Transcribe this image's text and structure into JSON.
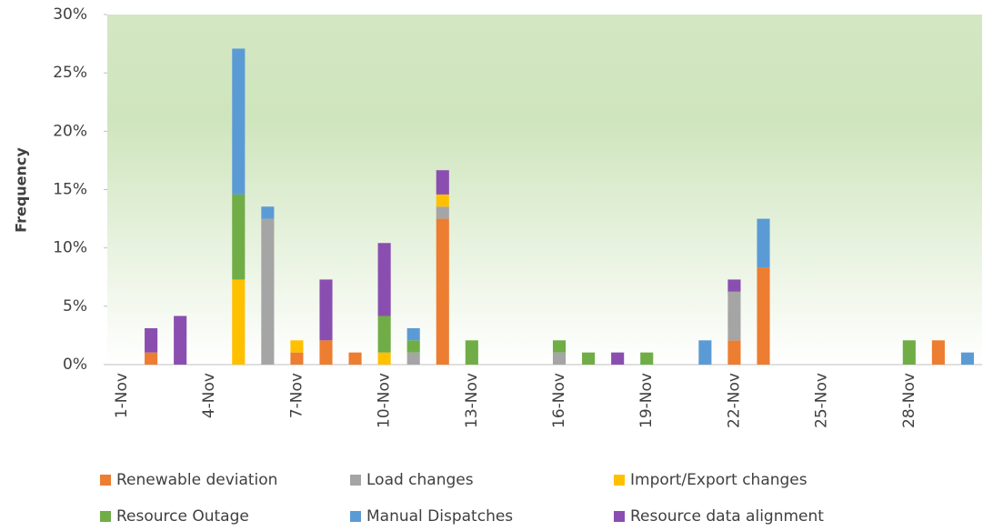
{
  "chart_data": {
    "type": "stacked-bar",
    "y_label": "Frequency",
    "categories": [
      "1-Nov",
      null,
      null,
      "4-Nov",
      null,
      null,
      "7-Nov",
      null,
      null,
      "10-Nov",
      null,
      null,
      "13-Nov",
      null,
      null,
      "16-Nov",
      null,
      null,
      "19-Nov",
      null,
      null,
      "22-Nov",
      null,
      null,
      "25-Nov",
      null,
      null,
      "28-Nov",
      null,
      null
    ],
    "series": [
      {
        "name": "Renewable deviation",
        "color": "#ed7d31",
        "values": [
          0,
          1.04,
          0,
          0,
          0,
          0,
          1.04,
          2.08,
          1.04,
          0,
          0,
          12.5,
          0,
          0,
          0,
          0,
          0,
          0,
          0,
          0,
          0,
          2.08,
          8.33,
          0,
          0,
          0,
          0,
          0,
          2.08,
          0
        ]
      },
      {
        "name": "Load changes",
        "color": "#a5a5a5",
        "values": [
          0,
          0,
          0,
          0,
          0,
          12.5,
          0,
          0,
          0,
          0,
          1.04,
          1.04,
          0,
          0,
          0,
          1.04,
          0,
          0,
          0,
          0,
          0,
          4.17,
          0,
          0,
          0,
          0,
          0,
          0,
          0,
          0
        ]
      },
      {
        "name": "Import/Export changes",
        "color": "#ffc000",
        "values": [
          0,
          0,
          0,
          0,
          7.29,
          0,
          1.04,
          0,
          0,
          1.04,
          0,
          1.04,
          0,
          0,
          0,
          0,
          0,
          0,
          0,
          0,
          0,
          0,
          0,
          0,
          0,
          0,
          0,
          0,
          0,
          0
        ]
      },
      {
        "name": "Resource Outage",
        "color": "#70ad47",
        "values": [
          0,
          0,
          0,
          0,
          7.29,
          0,
          0,
          0,
          0,
          3.13,
          1.04,
          0,
          2.08,
          0,
          0,
          1.04,
          1.04,
          0,
          1.04,
          0,
          0,
          0,
          0,
          0,
          0,
          0,
          0,
          2.08,
          0,
          0
        ]
      },
      {
        "name": "Manual Dispatches",
        "color": "#5b9bd5",
        "values": [
          0,
          0,
          0,
          0,
          12.5,
          1.04,
          0,
          0,
          0,
          0,
          1.04,
          0,
          0,
          0,
          0,
          0,
          0,
          0,
          0,
          0,
          2.08,
          0,
          4.17,
          0,
          0,
          0,
          0,
          0,
          0,
          1.04
        ]
      },
      {
        "name": "Resource data alignment",
        "color": "#8a4eb0",
        "values": [
          0,
          2.08,
          4.17,
          0,
          0,
          0,
          0,
          5.21,
          0,
          6.25,
          0,
          2.08,
          0,
          0,
          0,
          0,
          0,
          1.04,
          0,
          0,
          0,
          1.04,
          0,
          0,
          0,
          0,
          0,
          0,
          0,
          0
        ]
      }
    ],
    "ylim": [
      0,
      30
    ],
    "yticks": [
      {
        "value": 0,
        "label": "0%"
      },
      {
        "value": 5,
        "label": "5%"
      },
      {
        "value": 10,
        "label": "10%"
      },
      {
        "value": 15,
        "label": "15%"
      },
      {
        "value": 20,
        "label": "20%"
      },
      {
        "value": 25,
        "label": "25%"
      },
      {
        "value": 30,
        "label": "30%"
      }
    ],
    "legend": "bottom"
  }
}
